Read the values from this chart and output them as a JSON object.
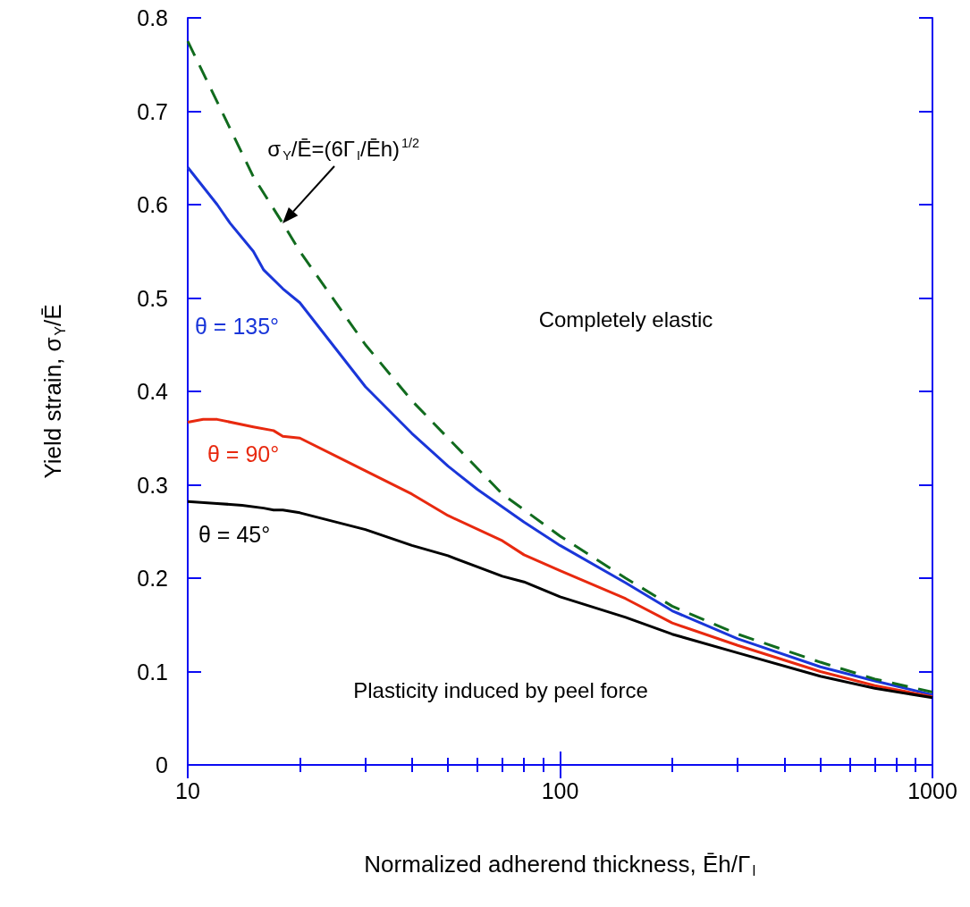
{
  "chart_data": {
    "type": "line",
    "xlabel": "Normalized adherend thickness, Ēh/Γ$_{I}$",
    "ylabel": "Yield strain, σ$_{Y}$/Ē",
    "log": "x",
    "xlim": [
      10,
      1000
    ],
    "xticks": [
      10,
      100,
      1000
    ],
    "ylim": [
      0,
      0.8
    ],
    "yticks": [
      0,
      0.1,
      0.2,
      0.3,
      0.4,
      0.5,
      0.6,
      0.7,
      0.8
    ],
    "grid": false,
    "legend": false,
    "marker": "none",
    "annotations": [
      {
        "text": "σ$_{Y}$/Ē=(6Γ$_{I}$/Ēh)$^{1/2}$",
        "x": 18,
        "y": 0.58
      },
      "Completely elastic",
      "Plasticity induced by peel force"
    ],
    "series": [
      {
        "name": "θ = 135°",
        "color": "#1a36d9",
        "line_style": "solid",
        "x": [
          10,
          12,
          13,
          15,
          16,
          18,
          20,
          30,
          40,
          50,
          60,
          80,
          100,
          150,
          200,
          300,
          500,
          700,
          1000
        ],
        "values": [
          0.64,
          0.6,
          0.58,
          0.55,
          0.53,
          0.51,
          0.495,
          0.405,
          0.355,
          0.32,
          0.295,
          0.26,
          0.235,
          0.195,
          0.165,
          0.135,
          0.105,
          0.09,
          0.075
        ]
      },
      {
        "name": "θ = 90°",
        "color": "#e8290f",
        "line_style": "solid",
        "x": [
          10,
          11,
          12,
          15,
          17,
          18,
          20,
          30,
          40,
          50,
          70,
          80,
          100,
          150,
          200,
          300,
          500,
          700,
          1000
        ],
        "values": [
          0.367,
          0.37,
          0.37,
          0.362,
          0.358,
          0.352,
          0.35,
          0.315,
          0.29,
          0.267,
          0.24,
          0.225,
          0.208,
          0.178,
          0.152,
          0.128,
          0.1,
          0.085,
          0.073
        ]
      },
      {
        "name": "θ = 45°",
        "color": "#000000",
        "line_style": "solid",
        "x": [
          10,
          12,
          14,
          16,
          17,
          18,
          20,
          30,
          40,
          50,
          60,
          70,
          80,
          100,
          150,
          200,
          300,
          500,
          700,
          1000
        ],
        "values": [
          0.282,
          0.28,
          0.278,
          0.275,
          0.273,
          0.273,
          0.27,
          0.252,
          0.235,
          0.224,
          0.212,
          0.202,
          0.196,
          0.18,
          0.158,
          0.14,
          0.12,
          0.095,
          0.082,
          0.072
        ]
      },
      {
        "color": "#116b1e",
        "line_style": "dashed",
        "x": [
          10,
          12,
          15,
          18,
          20,
          30,
          40,
          50,
          70,
          100,
          150,
          200,
          300,
          500,
          700,
          1000
        ],
        "values": [
          0.775,
          0.71,
          0.63,
          0.58,
          0.55,
          0.45,
          0.39,
          0.35,
          0.29,
          0.245,
          0.2,
          0.17,
          0.14,
          0.11,
          0.092,
          0.078
        ]
      }
    ]
  }
}
